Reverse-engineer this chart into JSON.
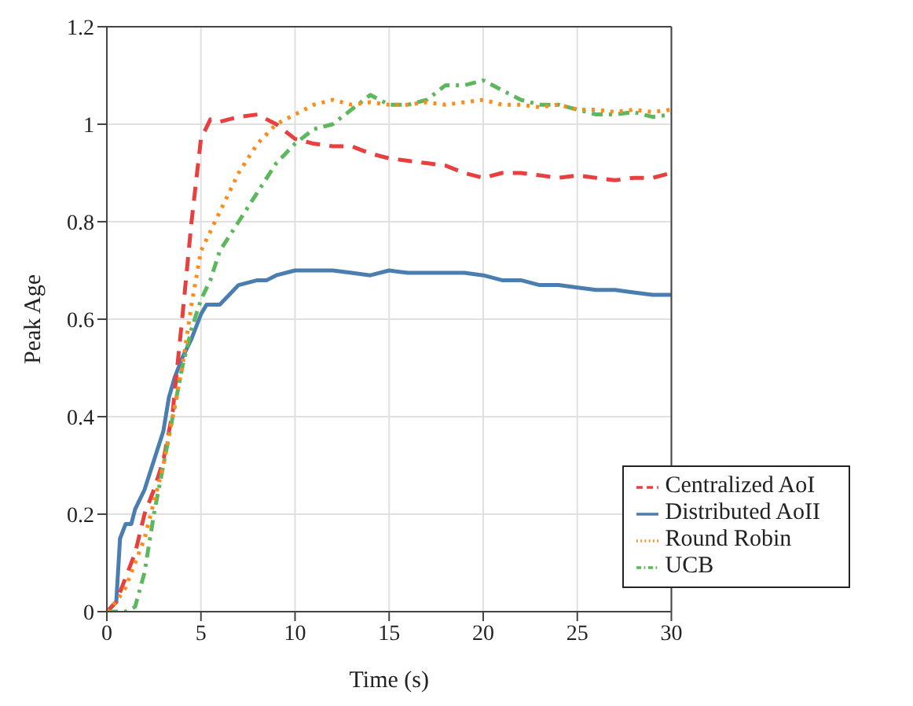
{
  "chart_data": {
    "type": "line",
    "xlabel": "Time (s)",
    "ylabel": "Peak Age",
    "xlim": [
      0,
      30
    ],
    "xticks": [
      0,
      5,
      10,
      15,
      20,
      25,
      30
    ],
    "ylim": [
      0,
      1.2
    ],
    "yticks": [
      0,
      0.2,
      0.4,
      0.6,
      0.8,
      1,
      1.2
    ],
    "grid": true,
    "legend": "bottom right",
    "marker": "none",
    "series": [
      {
        "name": "Distributed AoII",
        "color": "#4a7eb0",
        "line_style": "solid",
        "x": [
          0,
          0.5,
          0.7,
          1,
          1.3,
          1.5,
          2,
          2.5,
          3,
          3.3,
          3.6,
          4,
          4.5,
          5,
          5.3,
          6,
          6.5,
          7,
          8,
          8.5,
          9,
          10,
          11,
          12,
          13,
          14,
          15,
          16,
          17,
          18,
          19,
          20,
          21,
          22,
          23,
          24,
          25,
          26,
          27,
          28,
          29,
          30
        ],
        "values": [
          0,
          0.02,
          0.15,
          0.18,
          0.18,
          0.21,
          0.25,
          0.31,
          0.37,
          0.44,
          0.48,
          0.52,
          0.56,
          0.61,
          0.63,
          0.63,
          0.65,
          0.67,
          0.68,
          0.68,
          0.69,
          0.7,
          0.7,
          0.7,
          0.695,
          0.69,
          0.7,
          0.695,
          0.695,
          0.695,
          0.695,
          0.69,
          0.68,
          0.68,
          0.67,
          0.67,
          0.665,
          0.66,
          0.66,
          0.655,
          0.65,
          0.65
        ]
      },
      {
        "name": "Centralized AoI",
        "color": "#e8403f",
        "line_style": "dashed",
        "x": [
          0,
          0.5,
          1,
          1.5,
          2,
          2.5,
          3,
          3.5,
          4,
          4.5,
          5,
          5.5,
          6,
          7,
          8,
          9,
          10,
          11,
          12,
          13,
          14,
          15,
          16,
          17,
          18,
          19,
          20,
          21,
          22,
          23,
          24,
          25,
          26,
          27,
          28,
          29,
          30
        ],
        "values": [
          0,
          0.02,
          0.07,
          0.12,
          0.2,
          0.25,
          0.31,
          0.41,
          0.6,
          0.8,
          0.97,
          1.01,
          1.005,
          1.015,
          1.02,
          1,
          0.97,
          0.96,
          0.955,
          0.955,
          0.94,
          0.93,
          0.925,
          0.92,
          0.915,
          0.9,
          0.89,
          0.9,
          0.9,
          0.895,
          0.89,
          0.895,
          0.89,
          0.885,
          0.89,
          0.89,
          0.9
        ]
      },
      {
        "name": "UCB",
        "color": "#5cb85c",
        "line_style": "dashdot",
        "x": [
          0,
          1,
          1.5,
          2,
          2.5,
          3,
          3.5,
          4,
          4.5,
          5,
          5.5,
          6,
          7,
          8,
          9,
          9.5,
          10,
          11,
          12,
          13,
          14,
          15,
          16,
          17,
          18,
          19,
          20,
          21,
          22,
          23,
          24,
          25,
          26,
          27,
          28,
          29,
          30
        ],
        "values": [
          0,
          0,
          0.01,
          0.08,
          0.2,
          0.3,
          0.4,
          0.5,
          0.58,
          0.64,
          0.68,
          0.74,
          0.8,
          0.86,
          0.92,
          0.94,
          0.96,
          0.99,
          1,
          1.03,
          1.06,
          1.04,
          1.04,
          1.05,
          1.08,
          1.08,
          1.09,
          1.07,
          1.05,
          1.04,
          1.04,
          1.03,
          1.02,
          1.02,
          1.025,
          1.015,
          1.02
        ]
      },
      {
        "name": "Round Robin",
        "color": "#ff8c1a",
        "line_style": "dotted",
        "x": [
          0,
          0.5,
          1,
          2,
          3,
          4,
          4.5,
          5,
          6,
          7,
          8,
          9,
          10,
          11,
          12,
          13,
          14,
          15,
          16,
          17,
          18,
          19,
          20,
          21,
          22,
          23,
          24,
          25,
          26,
          27,
          28,
          29,
          30
        ],
        "values": [
          0,
          0.02,
          0.05,
          0.15,
          0.3,
          0.5,
          0.63,
          0.74,
          0.82,
          0.9,
          0.96,
          1,
          1.02,
          1.04,
          1.05,
          1.04,
          1.045,
          1.04,
          1.04,
          1.045,
          1.04,
          1.045,
          1.05,
          1.04,
          1.04,
          1.035,
          1.04,
          1.03,
          1.03,
          1.025,
          1.03,
          1.025,
          1.03
        ]
      }
    ]
  }
}
